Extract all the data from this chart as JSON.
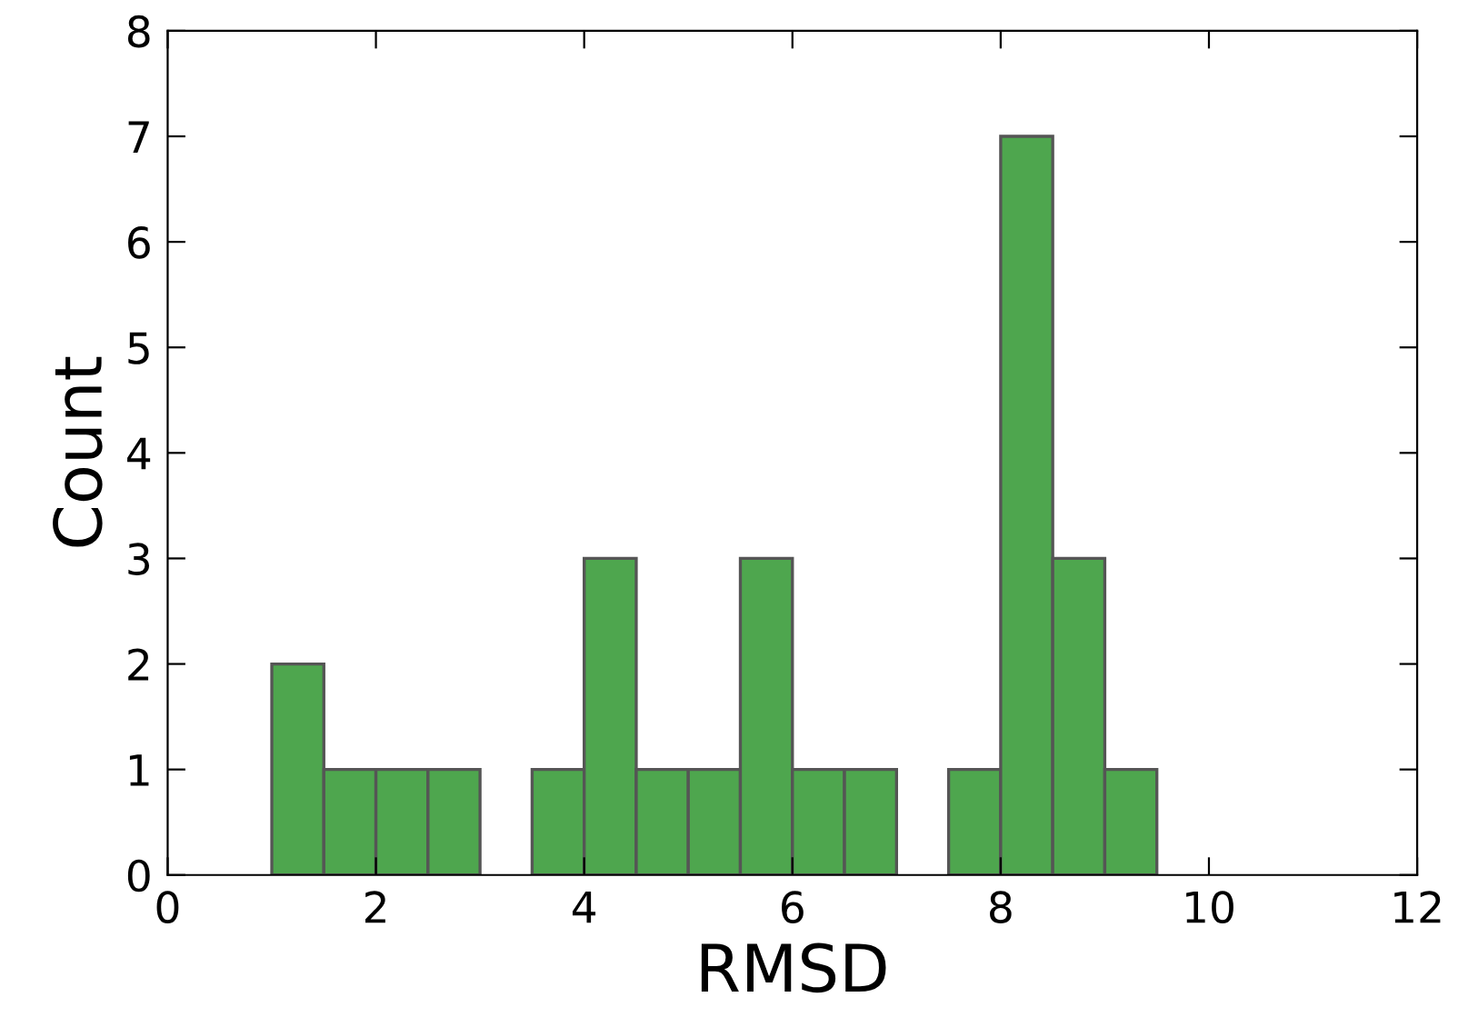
{
  "chart_data": {
    "type": "histogram",
    "xlabel": "RMSD",
    "ylabel": "Count",
    "bins": [
      1,
      1.5,
      2,
      2.5,
      3,
      3.5,
      4,
      4.5,
      5,
      5.5,
      6,
      6.5,
      7,
      7.5,
      8,
      8.5,
      9,
      9.5,
      10,
      10.5
    ],
    "values": [
      2,
      1,
      1,
      1,
      0,
      1,
      3,
      1,
      1,
      3,
      1,
      1,
      0,
      1,
      7,
      3,
      1,
      0,
      0
    ],
    "color": "#4ea64e",
    "xlim": [
      0,
      12
    ],
    "xticks": [
      0,
      2,
      4,
      6,
      8,
      10,
      12
    ],
    "ylim": [
      0,
      8
    ],
    "yticks": [
      0,
      1,
      2,
      3,
      4,
      5,
      6,
      7,
      8
    ],
    "grid": false,
    "legend": false
  }
}
